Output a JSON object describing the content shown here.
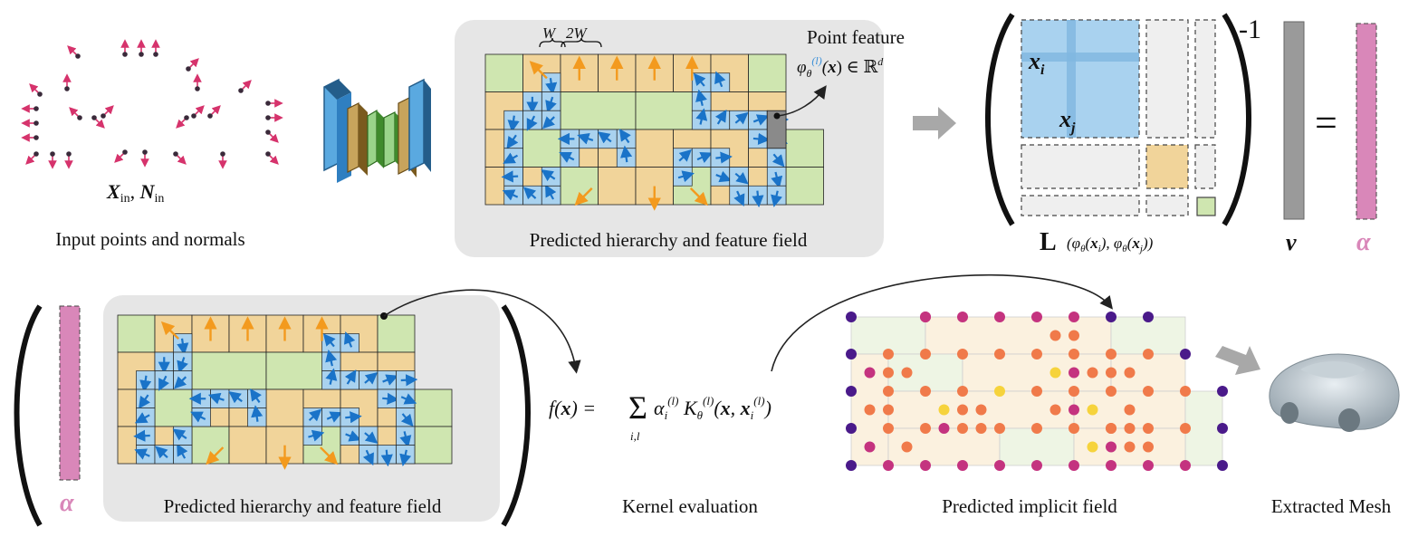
{
  "captions": {
    "input": "Input points and normals",
    "hierarchy_top": "Predicted hierarchy and feature field",
    "hierarchy_bottom": "Predicted hierarchy and feature field",
    "kernel": "Kernel evaluation",
    "implicit": "Predicted implicit field",
    "mesh": "Extracted Mesh"
  },
  "labels": {
    "input_symbols": "X",
    "input_sub": "in",
    "input_symbols2": "N",
    "point_feature": "Point feature",
    "feature_expr": "φθ(l)(x) ∈ ℝd",
    "w_label": "W",
    "w2_label": "2W",
    "inverse": "-1",
    "xi": "x",
    "i_sub": "i",
    "xj": "x",
    "j_sub": "j",
    "L_label": "L",
    "L_args": "(φθ(xi), φθ(xj))",
    "v_label": "v",
    "alpha": "α",
    "alpha2": "α",
    "equals": "=",
    "kernel_eq": "f(x) = Σi,l αi(l) Kθ(l)(x, xi(l))"
  },
  "colors": {
    "green": "#cfe6b0",
    "tan": "#f1d49a",
    "blue": "#a9d2ef",
    "arrow_blue": "#1a73c8",
    "arrow_orange": "#f39a1e",
    "pink": "#d987b9",
    "gray_bar": "#9a9a9a",
    "panel": "#e6e6e6",
    "point_pink": "#d6336c",
    "dot_orange": "#f07a4a",
    "dot_magenta": "#c4337f",
    "dot_purple": "#4a1a8a",
    "dot_yellow": "#f6d33c"
  }
}
